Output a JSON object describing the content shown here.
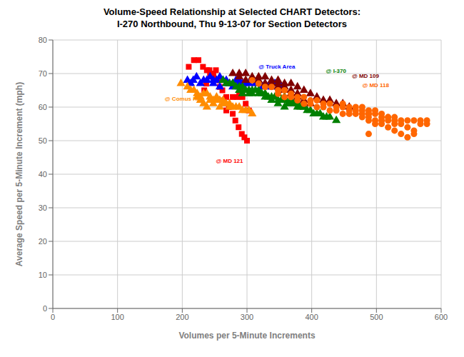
{
  "chart_data": {
    "type": "scatter",
    "title": "Volume-Speed Relationship at Selected CHART Detectors:",
    "subtitle": "I-270 Northbound, Thu 9-13-07 for Section Detectors",
    "xlabel": "Volumes per 5-Minute Increments",
    "ylabel": "Average Speed per 5-Minute Increment (mph)",
    "xlim": [
      0,
      600
    ],
    "ylim": [
      0,
      80
    ],
    "xticks": [
      0,
      100,
      200,
      300,
      400,
      500,
      600
    ],
    "yticks": [
      0,
      10,
      20,
      30,
      40,
      50,
      60,
      70,
      80
    ],
    "grid": true,
    "annotations": [
      {
        "text": "@ Truck Area",
        "x": 318,
        "y": 71.5,
        "color": "#0000FF"
      },
      {
        "text": "@ I-370",
        "x": 422,
        "y": 70.2,
        "color": "#008000"
      },
      {
        "text": "@ MD 109",
        "x": 462,
        "y": 68.8,
        "color": "#800000"
      },
      {
        "text": "@ MD 118",
        "x": 478,
        "y": 66.0,
        "color": "#FF6600"
      },
      {
        "text": "@ Comus Rd",
        "x": 173,
        "y": 62.0,
        "color": "#FF8C00"
      },
      {
        "text": "@ MD 121",
        "x": 252,
        "y": 43.5,
        "color": "#FF0000"
      }
    ],
    "series": [
      {
        "color": "#FF0000",
        "marker": "square",
        "values": [
          [
            210,
            72
          ],
          [
            218,
            74
          ],
          [
            225,
            74
          ],
          [
            232,
            72
          ],
          [
            238,
            71
          ],
          [
            243,
            70
          ],
          [
            248,
            69
          ],
          [
            252,
            71
          ],
          [
            258,
            68
          ],
          [
            262,
            65
          ],
          [
            268,
            63
          ],
          [
            272,
            60
          ],
          [
            278,
            58
          ],
          [
            282,
            56
          ],
          [
            287,
            54
          ],
          [
            292,
            52
          ],
          [
            296,
            51
          ],
          [
            300,
            50
          ],
          [
            264,
            62
          ],
          [
            268,
            59
          ],
          [
            253,
            68
          ],
          [
            258,
            66
          ],
          [
            242,
            71
          ],
          [
            248,
            70
          ],
          [
            237,
            67
          ],
          [
            234,
            65
          ],
          [
            278,
            63
          ],
          [
            288,
            64
          ],
          [
            293,
            63
          ],
          [
            298,
            61
          ],
          [
            303,
            59
          ],
          [
            293,
            65
          ],
          [
            285,
            63
          ]
        ]
      },
      {
        "color": "#0000FF",
        "marker": "triangle",
        "values": [
          [
            208,
            68
          ],
          [
            217,
            68
          ],
          [
            222,
            69
          ],
          [
            213,
            67
          ],
          [
            228,
            67
          ],
          [
            233,
            68
          ],
          [
            238,
            68
          ],
          [
            243,
            69
          ],
          [
            248,
            68
          ],
          [
            253,
            68
          ],
          [
            258,
            69
          ],
          [
            263,
            68
          ],
          [
            268,
            68
          ],
          [
            273,
            67
          ],
          [
            278,
            67
          ],
          [
            283,
            68
          ],
          [
            288,
            68
          ],
          [
            293,
            67
          ],
          [
            298,
            67
          ],
          [
            303,
            67
          ],
          [
            308,
            68
          ],
          [
            313,
            67
          ],
          [
            318,
            67
          ],
          [
            323,
            66
          ],
          [
            328,
            67
          ],
          [
            333,
            66
          ],
          [
            338,
            66
          ],
          [
            343,
            67
          ],
          [
            348,
            66
          ],
          [
            353,
            66
          ],
          [
            248,
            67
          ],
          [
            258,
            66
          ],
          [
            268,
            67
          ],
          [
            278,
            66
          ],
          [
            288,
            67
          ]
        ]
      },
      {
        "color": "#FF8C00",
        "marker": "triangle",
        "values": [
          [
            198,
            67
          ],
          [
            208,
            66
          ],
          [
            213,
            65
          ],
          [
            218,
            65
          ],
          [
            223,
            63
          ],
          [
            228,
            62
          ],
          [
            233,
            61
          ],
          [
            238,
            60
          ],
          [
            243,
            62
          ],
          [
            248,
            61
          ],
          [
            253,
            63
          ],
          [
            258,
            62
          ],
          [
            263,
            61
          ],
          [
            268,
            61
          ],
          [
            273,
            60
          ],
          [
            278,
            60
          ],
          [
            283,
            60
          ],
          [
            288,
            60
          ],
          [
            293,
            59
          ],
          [
            298,
            59
          ],
          [
            303,
            59
          ],
          [
            308,
            58
          ],
          [
            223,
            64
          ],
          [
            228,
            63
          ],
          [
            233,
            64
          ],
          [
            243,
            63
          ],
          [
            253,
            62
          ],
          [
            263,
            62
          ],
          [
            273,
            61
          ],
          [
            258,
            60
          ],
          [
            248,
            62
          ],
          [
            238,
            64
          ]
        ]
      },
      {
        "color": "#008000",
        "marker": "triangle",
        "values": [
          [
            263,
            68
          ],
          [
            268,
            67
          ],
          [
            273,
            67
          ],
          [
            278,
            67
          ],
          [
            283,
            66
          ],
          [
            288,
            66
          ],
          [
            293,
            66
          ],
          [
            298,
            65
          ],
          [
            303,
            65
          ],
          [
            308,
            65
          ],
          [
            313,
            65
          ],
          [
            318,
            64
          ],
          [
            323,
            64
          ],
          [
            328,
            64
          ],
          [
            333,
            63
          ],
          [
            338,
            63
          ],
          [
            343,
            63
          ],
          [
            348,
            62
          ],
          [
            353,
            62
          ],
          [
            358,
            62
          ],
          [
            363,
            61
          ],
          [
            368,
            61
          ],
          [
            373,
            61
          ],
          [
            378,
            60
          ],
          [
            383,
            60
          ],
          [
            388,
            60
          ],
          [
            393,
            59
          ],
          [
            398,
            59
          ],
          [
            403,
            58
          ],
          [
            408,
            58
          ],
          [
            413,
            58
          ],
          [
            418,
            57
          ],
          [
            423,
            57
          ],
          [
            428,
            57
          ],
          [
            438,
            56
          ],
          [
            318,
            65
          ],
          [
            328,
            63
          ],
          [
            338,
            62
          ],
          [
            348,
            61
          ],
          [
            358,
            60
          ],
          [
            288,
            65
          ],
          [
            293,
            64
          ],
          [
            348,
            64
          ],
          [
            358,
            63
          ],
          [
            368,
            62
          ],
          [
            378,
            61
          ],
          [
            388,
            60
          ],
          [
            303,
            64
          ],
          [
            308,
            64
          ]
        ]
      },
      {
        "color": "#800000",
        "marker": "triangle",
        "values": [
          [
            278,
            70
          ],
          [
            288,
            70
          ],
          [
            298,
            70
          ],
          [
            308,
            69
          ],
          [
            318,
            69
          ],
          [
            328,
            69
          ],
          [
            338,
            68
          ],
          [
            348,
            68
          ],
          [
            358,
            67
          ],
          [
            368,
            67
          ],
          [
            378,
            66
          ],
          [
            388,
            65
          ],
          [
            398,
            64
          ],
          [
            408,
            63
          ],
          [
            418,
            62
          ],
          [
            428,
            62
          ],
          [
            438,
            61
          ],
          [
            448,
            61
          ],
          [
            458,
            60
          ],
          [
            348,
            66
          ],
          [
            358,
            65
          ],
          [
            368,
            64
          ],
          [
            378,
            63
          ],
          [
            388,
            62
          ],
          [
            398,
            61
          ],
          [
            288,
            69
          ],
          [
            298,
            68
          ],
          [
            308,
            68
          ],
          [
            318,
            68
          ],
          [
            328,
            67
          ],
          [
            338,
            67
          ],
          [
            348,
            67
          ],
          [
            358,
            66
          ],
          [
            368,
            65
          ],
          [
            378,
            64
          ]
        ]
      },
      {
        "color": "#FF6600",
        "marker": "circle",
        "values": [
          [
            308,
            68
          ],
          [
            318,
            67
          ],
          [
            328,
            66
          ],
          [
            338,
            66
          ],
          [
            348,
            65
          ],
          [
            358,
            65
          ],
          [
            368,
            64
          ],
          [
            378,
            63
          ],
          [
            388,
            63
          ],
          [
            398,
            62
          ],
          [
            408,
            62
          ],
          [
            418,
            61
          ],
          [
            428,
            61
          ],
          [
            438,
            60
          ],
          [
            448,
            60
          ],
          [
            458,
            59
          ],
          [
            468,
            59
          ],
          [
            478,
            58
          ],
          [
            488,
            58
          ],
          [
            498,
            58
          ],
          [
            508,
            57
          ],
          [
            518,
            57
          ],
          [
            528,
            57
          ],
          [
            538,
            56
          ],
          [
            548,
            56
          ],
          [
            558,
            56
          ],
          [
            568,
            55
          ],
          [
            578,
            55
          ],
          [
            348,
            64
          ],
          [
            358,
            63
          ],
          [
            368,
            63
          ],
          [
            378,
            62
          ],
          [
            388,
            61
          ],
          [
            398,
            61
          ],
          [
            408,
            60
          ],
          [
            418,
            60
          ],
          [
            428,
            59
          ],
          [
            438,
            59
          ],
          [
            448,
            58
          ],
          [
            458,
            58
          ],
          [
            468,
            58
          ],
          [
            478,
            57
          ],
          [
            488,
            57
          ],
          [
            498,
            56
          ],
          [
            508,
            56
          ],
          [
            518,
            56
          ],
          [
            528,
            55
          ],
          [
            538,
            55
          ],
          [
            548,
            54
          ],
          [
            558,
            53
          ],
          [
            478,
            60
          ],
          [
            488,
            59
          ],
          [
            498,
            59
          ],
          [
            508,
            58
          ],
          [
            518,
            57
          ],
          [
            488,
            52
          ],
          [
            448,
            61
          ],
          [
            458,
            60
          ],
          [
            468,
            60
          ],
          [
            478,
            59
          ],
          [
            488,
            58
          ],
          [
            528,
            56
          ],
          [
            488,
            56
          ],
          [
            498,
            55
          ],
          [
            508,
            55
          ],
          [
            518,
            54
          ],
          [
            528,
            53
          ],
          [
            538,
            52
          ],
          [
            548,
            51
          ],
          [
            558,
            52
          ],
          [
            568,
            56
          ],
          [
            578,
            56
          ]
        ]
      }
    ]
  }
}
